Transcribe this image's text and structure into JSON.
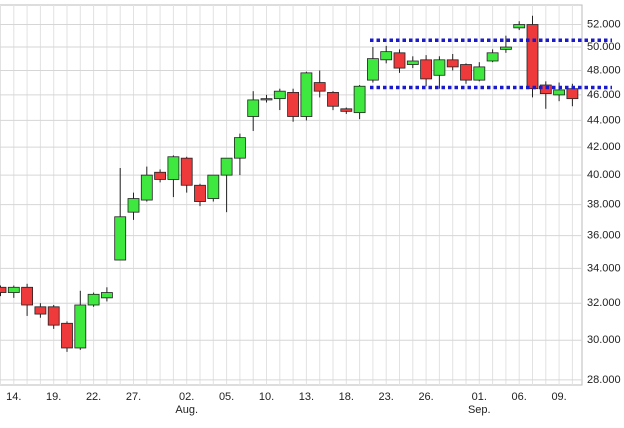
{
  "chart_data": {
    "type": "candlestick",
    "categories": [
      null,
      "14.",
      null,
      null,
      "19.",
      null,
      null,
      "22.",
      null,
      null,
      "27.",
      null,
      null,
      null,
      "02.",
      null,
      null,
      "05.",
      null,
      null,
      "10.",
      null,
      null,
      "13.",
      null,
      null,
      "18.",
      null,
      null,
      "23.",
      null,
      null,
      "26.",
      null,
      null,
      null,
      "01.",
      null,
      null,
      "06.",
      null,
      null,
      "09.",
      null
    ],
    "month_labels": [
      null,
      null,
      null,
      null,
      null,
      null,
      null,
      null,
      null,
      null,
      null,
      null,
      null,
      null,
      "Aug.",
      null,
      null,
      null,
      null,
      null,
      null,
      null,
      null,
      null,
      null,
      null,
      null,
      null,
      null,
      null,
      null,
      null,
      null,
      null,
      null,
      null,
      "Sep.",
      null,
      null,
      null,
      null,
      null,
      null,
      null
    ],
    "open": [
      32.9,
      32.6,
      32.9,
      31.8,
      31.8,
      30.9,
      29.6,
      31.9,
      32.3,
      34.5,
      37.5,
      38.3,
      40.2,
      39.7,
      41.2,
      39.3,
      38.4,
      40.0,
      41.2,
      44.3,
      45.6,
      45.7,
      46.2,
      44.3,
      47.0,
      46.2,
      44.9,
      44.6,
      47.2,
      48.9,
      49.5,
      48.5,
      48.9,
      47.6,
      48.9,
      48.5,
      47.2,
      48.8,
      49.8,
      51.7,
      52.0,
      46.8,
      46.0,
      46.5
    ],
    "high": [
      33.0,
      33.0,
      33.1,
      32.0,
      31.9,
      31.0,
      32.7,
      32.6,
      32.9,
      40.5,
      38.8,
      40.6,
      40.4,
      41.4,
      41.3,
      39.4,
      40.0,
      41.2,
      43.0,
      46.3,
      46.0,
      46.5,
      46.5,
      47.9,
      48.0,
      46.3,
      45.0,
      46.8,
      50.0,
      50.1,
      49.8,
      49.2,
      49.3,
      49.2,
      49.4,
      48.6,
      48.7,
      49.8,
      51.0,
      52.3,
      52.8,
      47.1,
      47.0,
      46.9
    ],
    "low": [
      32.4,
      32.3,
      31.3,
      31.2,
      30.6,
      29.4,
      29.5,
      31.8,
      32.1,
      34.5,
      37.0,
      38.2,
      39.5,
      38.5,
      38.8,
      37.9,
      38.2,
      37.5,
      40.0,
      43.2,
      45.4,
      44.8,
      43.9,
      44.0,
      45.8,
      44.8,
      44.5,
      44.1,
      47.0,
      48.6,
      47.8,
      48.2,
      46.7,
      46.5,
      48.0,
      46.9,
      47.1,
      48.7,
      49.5,
      51.5,
      45.8,
      44.9,
      45.5,
      45.1
    ],
    "close": [
      32.6,
      32.9,
      31.9,
      31.4,
      30.8,
      29.6,
      31.9,
      32.5,
      32.6,
      37.2,
      38.4,
      40.0,
      39.7,
      41.3,
      39.3,
      38.2,
      40.0,
      41.2,
      42.7,
      45.6,
      45.7,
      46.3,
      44.3,
      47.8,
      46.3,
      45.1,
      44.7,
      46.7,
      49.0,
      49.6,
      48.2,
      48.8,
      47.3,
      48.9,
      48.3,
      47.2,
      48.3,
      49.5,
      50.0,
      52.0,
      46.5,
      46.1,
      46.4,
      45.7
    ],
    "up_color": "#3ee83e",
    "down_color": "#ee3a3a",
    "lines": [
      {
        "value": 50.6,
        "color": "#1a1acc"
      },
      {
        "value": 46.6,
        "color": "#1a1acc"
      }
    ],
    "log_scale": true,
    "grid": true,
    "ylim": [
      27.75,
      53.8
    ],
    "yticks": [
      {
        "value": 28,
        "label": "28.000"
      },
      {
        "value": 30,
        "label": "30.000"
      },
      {
        "value": 32,
        "label": "32.000"
      },
      {
        "value": 34,
        "label": "34.000"
      },
      {
        "value": 36,
        "label": "36.000"
      },
      {
        "value": 38,
        "label": "38.000"
      },
      {
        "value": 40,
        "label": "40.000"
      },
      {
        "value": 42,
        "label": "42.000"
      },
      {
        "value": 44,
        "label": "44.000"
      },
      {
        "value": 46,
        "label": "46.000"
      },
      {
        "value": 48,
        "label": "48.000"
      },
      {
        "value": 50,
        "label": "50.000"
      },
      {
        "value": 52,
        "label": "52.000"
      }
    ]
  }
}
